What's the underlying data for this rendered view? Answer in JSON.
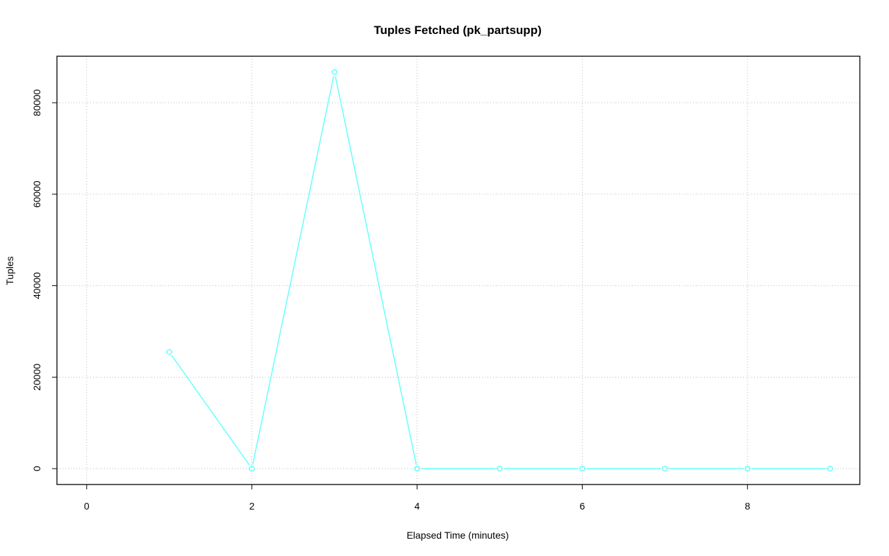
{
  "chart_data": {
    "type": "line",
    "title": "Tuples Fetched (pk_partsupp)",
    "xlabel": "Elapsed Time (minutes)",
    "ylabel": "Tuples",
    "x": [
      1,
      2,
      3,
      4,
      5,
      6,
      7,
      8,
      9
    ],
    "series": [
      {
        "values": [
          25500,
          0,
          86700,
          0,
          0,
          0,
          0,
          0,
          0
        ],
        "color": "#66FFFF"
      }
    ],
    "xlim": [
      0,
      9
    ],
    "ylim": [
      0,
      86700
    ],
    "xticks": [
      0,
      2,
      4,
      6,
      8
    ],
    "xtick_labels": [
      "0",
      "2",
      "4",
      "6",
      "8"
    ],
    "yticks": [
      0,
      20000,
      40000,
      60000,
      80000
    ],
    "ytick_labels": [
      "0",
      "20000",
      "40000",
      "60000",
      "80000"
    ],
    "grid": true,
    "markers": "open-circle"
  }
}
